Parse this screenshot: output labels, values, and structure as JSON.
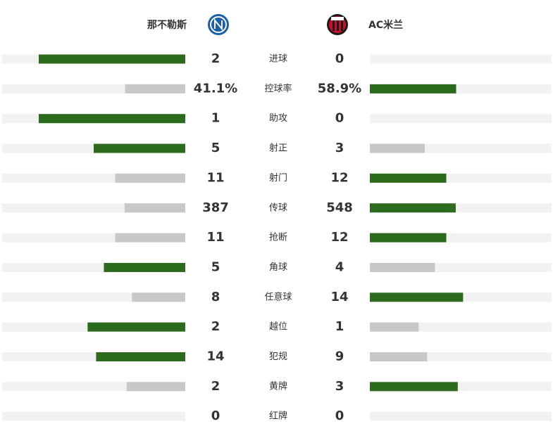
{
  "header": {
    "home_team": "那不勒斯",
    "away_team": "AC米兰"
  },
  "stats": [
    {
      "label": "进球",
      "home": 2,
      "away": 0
    },
    {
      "label": "控球率",
      "home": 41.1,
      "away": 58.9,
      "home_label": "41.1%",
      "away_label": "58.9%"
    },
    {
      "label": "助攻",
      "home": 1,
      "away": 0
    },
    {
      "label": "射正",
      "home": 5,
      "away": 3
    },
    {
      "label": "射门",
      "home": 11,
      "away": 12
    },
    {
      "label": "传球",
      "home": 387,
      "away": 548
    },
    {
      "label": "抢断",
      "home": 11,
      "away": 12
    },
    {
      "label": "角球",
      "home": 5,
      "away": 4
    },
    {
      "label": "任意球",
      "home": 8,
      "away": 14
    },
    {
      "label": "越位",
      "home": 2,
      "away": 1
    },
    {
      "label": "犯规",
      "home": 14,
      "away": 9
    },
    {
      "label": "黄牌",
      "home": 2,
      "away": 3
    },
    {
      "label": "红牌",
      "home": 0,
      "away": 0
    }
  ]
}
